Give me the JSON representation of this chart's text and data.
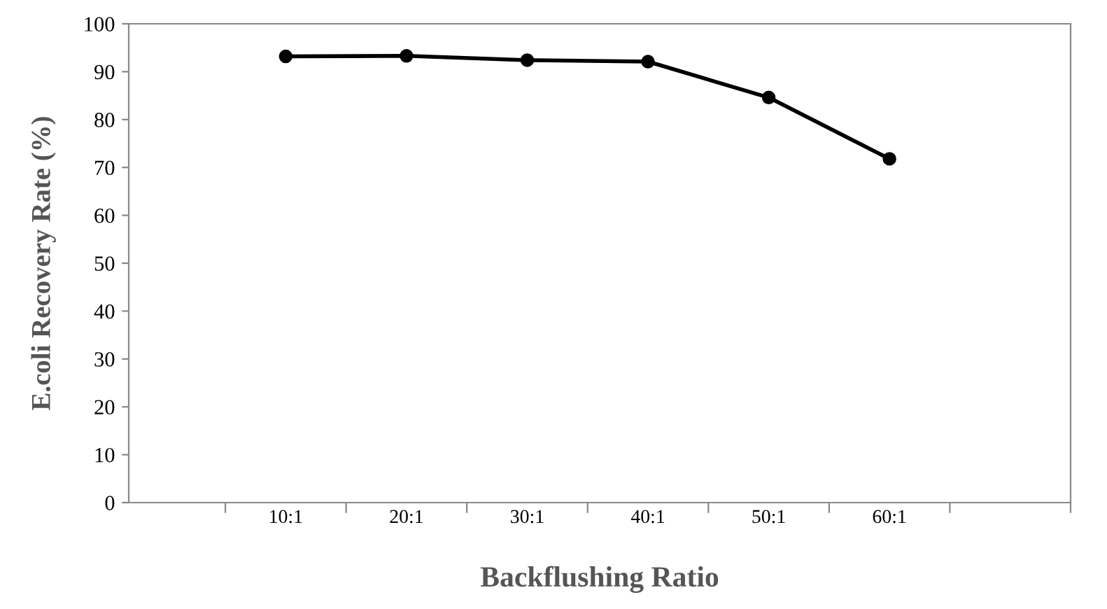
{
  "chart_data": {
    "type": "line",
    "xlabel": "Backflushing Ratio",
    "ylabel": "E.coli Recovery Rate (%)",
    "categories": [
      "10:1",
      "20:1",
      "30:1",
      "40:1",
      "50:1",
      "60:1"
    ],
    "series": [
      {
        "color": "#000000",
        "values": [
          93.2,
          93.3,
          92.4,
          92.1,
          84.6,
          71.8
        ]
      }
    ],
    "ylim": [
      0,
      100
    ],
    "yticks": [
      0,
      10,
      20,
      30,
      40,
      50,
      60,
      70,
      80,
      90,
      100
    ],
    "marker": "circle",
    "line_style": "solid",
    "grid": false,
    "legend": false
  }
}
